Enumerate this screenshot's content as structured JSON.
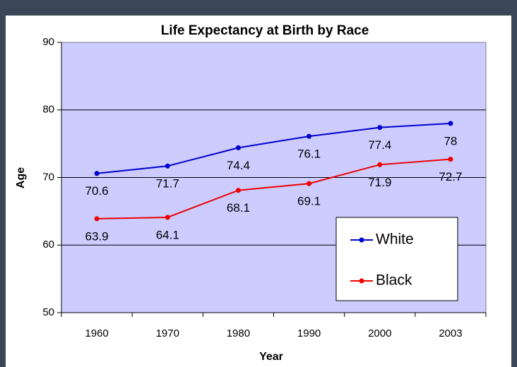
{
  "chart_data": {
    "type": "line",
    "title": "Life Expectancy at Birth by Race",
    "x_label": "Year",
    "y_label": "Age",
    "categories": [
      "1960",
      "1970",
      "1980",
      "1990",
      "2000",
      "2003"
    ],
    "series": [
      {
        "name": "White",
        "color": "#0000cc",
        "values": [
          70.6,
          71.7,
          74.4,
          76.1,
          77.4,
          78
        ]
      },
      {
        "name": "Black",
        "color": "#ee0000",
        "values": [
          63.9,
          64.1,
          68.1,
          69.1,
          71.9,
          72.7
        ]
      }
    ],
    "ylim": [
      50,
      90
    ],
    "yticks": [
      50,
      60,
      70,
      80,
      90
    ],
    "grid": true,
    "legend": "lower right",
    "plot_background": "#ccccff"
  }
}
